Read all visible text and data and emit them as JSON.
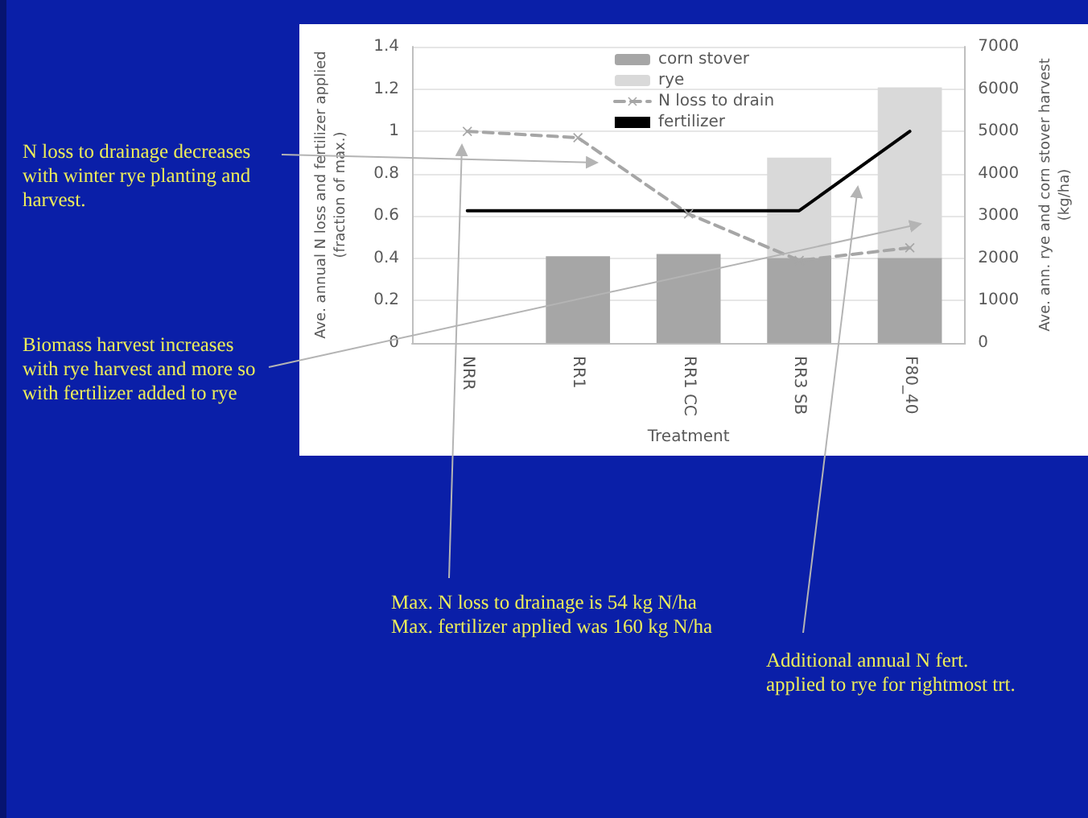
{
  "chart_data": {
    "type": "bar",
    "categories": [
      "NRR",
      "RR1",
      "RR1 CC",
      "RR3 SB",
      "F80_40"
    ],
    "xlabel": "Treatment",
    "ylabel": "Ave. annual N loss and fertilizer applied\n(fraction of max.)",
    "y2label": "Ave. ann. rye and corn stover harvest\n(kg/ha)",
    "stacked": true,
    "series": [
      {
        "name": "corn stover",
        "axis": "y2",
        "color": "#a6a6a6",
        "values": [
          null,
          2050,
          2100,
          2010,
          2010
        ]
      },
      {
        "name": "rye",
        "axis": "y2",
        "color": "#d9d9d9",
        "values": [
          null,
          null,
          null,
          2370,
          4030
        ]
      },
      {
        "name": "N loss to drain",
        "type": "line",
        "color": "#a6a6a6",
        "marker": "cross",
        "line_style": "dashed",
        "values": [
          1.0,
          0.97,
          0.61,
          0.39,
          0.45
        ]
      },
      {
        "name": "fertilizer",
        "type": "line",
        "color": "#000000",
        "marker": "none",
        "line_style": "solid",
        "values": [
          0.625,
          0.625,
          0.625,
          0.625,
          1.0
        ]
      }
    ],
    "ylim": [
      0,
      1.4
    ],
    "yticks": [
      0,
      0.2,
      0.4,
      0.6,
      0.8,
      1,
      1.2,
      1.4
    ],
    "y2lim": [
      0,
      7000
    ],
    "y2ticks": [
      0,
      1000,
      2000,
      3000,
      4000,
      5000,
      6000,
      7000
    ],
    "grid": "y",
    "legend": "top",
    "annotations": [
      "N loss to drainage decreases with winter rye planting and harvest.",
      "Biomass harvest increases with rye harvest and more so with fertilizer added to rye",
      "Max. N loss to drainage is 54 kg N/ha\nMax. fertilizer applied was 160 kg N/ha",
      "Additional annual N fert.\napplied to rye for rightmost trt."
    ]
  }
}
